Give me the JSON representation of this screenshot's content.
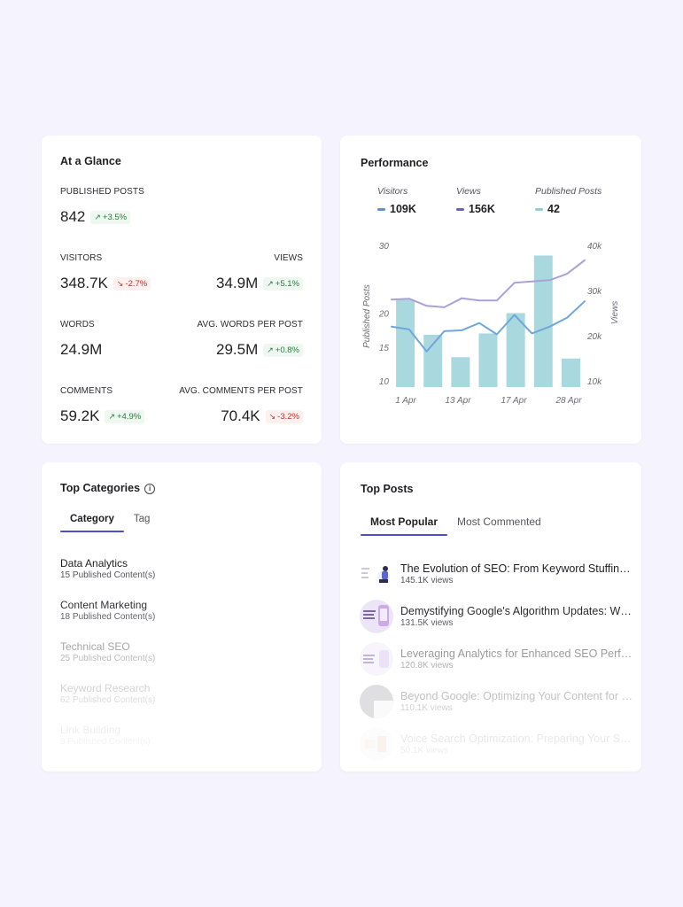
{
  "glance": {
    "title": "At a Glance",
    "published_posts": {
      "label": "PUBLISHED POSTS",
      "value": "842",
      "delta": "+3.5%"
    },
    "visitors": {
      "label": "VISITORS",
      "value": "348.7K",
      "delta": "-2.7%"
    },
    "views": {
      "label": "VIEWS",
      "value": "34.9M",
      "delta": "+5.1%"
    },
    "words": {
      "label": "WORDS",
      "value": "24.9M"
    },
    "avg_words": {
      "label": "AVG. WORDS PER POST",
      "value": "29.5M",
      "delta": "+0.8%"
    },
    "comments": {
      "label": "COMMENTS",
      "value": "59.2K",
      "delta": "+4.9%"
    },
    "avg_comments": {
      "label": "AVG. COMMENTS PER POST",
      "value": "70.4K",
      "delta": "-3.2%"
    },
    "colors": {
      "up": "#2c7a3f",
      "down": "#c2322b"
    }
  },
  "performance": {
    "title": "Performance",
    "legend": [
      {
        "name": "Visitors",
        "value": "109K",
        "color": "#5b8fd6"
      },
      {
        "name": "Views",
        "value": "156K",
        "color": "#6a5fc1"
      },
      {
        "name": "Published Posts",
        "value": "42",
        "color": "#8ecfcf"
      }
    ]
  },
  "chart_data": {
    "type": "bar",
    "x_tick_labels": [
      "1 Apr",
      "13 Apr",
      "17 Apr",
      "28 Apr"
    ],
    "left_axis": {
      "label": "Published Posts",
      "ticks": [
        "10",
        "15",
        "20",
        "30"
      ],
      "ylim": [
        10,
        30
      ]
    },
    "right_axis": {
      "label": "Views",
      "ticks": [
        "10k",
        "20k",
        "30k",
        "40k"
      ],
      "ylim": [
        10000,
        40000
      ]
    },
    "series": [
      {
        "name": "Published Posts",
        "kind": "bar",
        "axis": "left",
        "color": "#a9d9de",
        "values": [
          22.0,
          16.8,
          13.5,
          17.0,
          20.0,
          28.5,
          13.3
        ]
      },
      {
        "name": "Views",
        "kind": "line",
        "axis": "right",
        "color": "#aaa0dc",
        "values": [
          28000,
          28200,
          26600,
          26300,
          28300,
          27800,
          27800,
          31700,
          32000,
          32300,
          33700,
          36700
        ]
      },
      {
        "name": "Visitors",
        "kind": "line",
        "axis": "right",
        "color": "#6fa6dc",
        "values": [
          22000,
          21400,
          16500,
          21000,
          21200,
          22800,
          20300,
          24600,
          20500,
          22000,
          24000,
          27600
        ]
      }
    ],
    "grid": false
  },
  "categories": {
    "title": "Top Categories",
    "tabs": [
      "Category",
      "Tag"
    ],
    "items": [
      {
        "name": "Data Analytics",
        "count": "15 Published Content(s)"
      },
      {
        "name": "Content Marketing",
        "count": "18 Published Content(s)"
      },
      {
        "name": "Technical SEO",
        "count": "25 Published Content(s)"
      },
      {
        "name": "Keyword Research",
        "count": "62 Published Content(s)"
      },
      {
        "name": "Link Building",
        "count": "8 Published Content(s)"
      }
    ]
  },
  "posts": {
    "title": "Top Posts",
    "tabs": [
      "Most Popular",
      "Most Commented"
    ],
    "accent": "#4a50c8",
    "items": [
      {
        "title": "The Evolution of SEO: From Keyword Stuffing to User Intent",
        "views": "145.1K views"
      },
      {
        "title": "Demystifying Google's Algorithm Updates: What You Need to Know",
        "views": "131.5K views"
      },
      {
        "title": "Leveraging Analytics for Enhanced SEO Performance",
        "views": "120.8K views"
      },
      {
        "title": "Beyond Google: Optimizing Your Content for Other Search Engines",
        "views": "110.1K views"
      },
      {
        "title": "Voice Search Optimization: Preparing Your Site for the Future",
        "views": "50.1K views"
      }
    ]
  }
}
